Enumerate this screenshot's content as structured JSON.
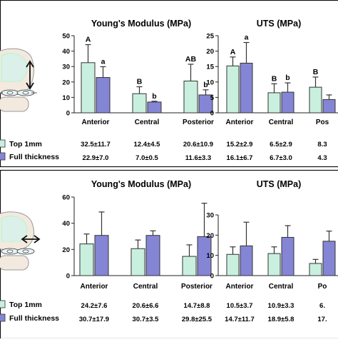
{
  "legend": {
    "top_label": "Top 1mm",
    "full_label": "Full thickness",
    "top_color": "#c9f0df",
    "full_color": "#8585d6"
  },
  "chart_data": [
    {
      "type": "bar",
      "title": "Young's Modulus (MPa)",
      "categories": [
        "Anterior",
        "Central",
        "Posterior"
      ],
      "ylim": [
        0,
        50
      ],
      "yticks": [
        0,
        10,
        20,
        30,
        40,
        50
      ],
      "series": [
        {
          "name": "Top 1mm",
          "values": [
            32.5,
            12.4,
            20.6
          ],
          "errors": [
            11.7,
            4.5,
            10.9
          ],
          "letters": [
            "A",
            "B",
            "AB"
          ]
        },
        {
          "name": "Full thickness",
          "values": [
            22.9,
            7.0,
            11.6
          ],
          "errors": [
            7.0,
            0.5,
            3.3
          ],
          "letters": [
            "a",
            "b",
            "b"
          ]
        }
      ],
      "table": {
        "top": [
          "32.5±11.7",
          "12.4±4.5",
          "20.6±10.9"
        ],
        "full": [
          "22.9±7.0",
          "7.0±0.5",
          "11.6±3.3"
        ]
      }
    },
    {
      "type": "bar",
      "title": "UTS (MPa)",
      "categories": [
        "Anterior",
        "Central",
        "Pos"
      ],
      "ylim": [
        0,
        25
      ],
      "yticks": [
        0,
        5,
        10,
        15,
        20,
        25
      ],
      "series": [
        {
          "name": "Top 1mm",
          "values": [
            15.2,
            6.5,
            8.3
          ],
          "errors": [
            2.9,
            2.9,
            3.3
          ],
          "letters": [
            "A",
            "B",
            "B"
          ]
        },
        {
          "name": "Full thickness",
          "values": [
            16.1,
            6.7,
            4.3
          ],
          "errors": [
            6.7,
            3.0,
            1.5
          ],
          "letters": [
            "a",
            "b",
            ""
          ]
        }
      ],
      "table": {
        "top": [
          "15.2±2.9",
          "6.5±2.9",
          "8.3"
        ],
        "full": [
          "16.1±6.7",
          "6.7±3.0",
          "4.3"
        ]
      }
    },
    {
      "type": "bar",
      "title": "Young's Modulus (MPa)",
      "categories": [
        "Anterior",
        "Central",
        "Posterior"
      ],
      "ylim": [
        0,
        60
      ],
      "yticks": [
        0,
        20,
        40,
        60
      ],
      "series": [
        {
          "name": "Top 1mm",
          "values": [
            24.2,
            20.6,
            14.7
          ],
          "errors": [
            7.6,
            6.6,
            8.8
          ]
        },
        {
          "name": "Full thickness",
          "values": [
            30.7,
            30.7,
            29.8
          ],
          "errors": [
            17.9,
            3.5,
            25.5
          ]
        }
      ],
      "table": {
        "top": [
          "24.2±7.6",
          "20.6±6.6",
          "14.7±8.8"
        ],
        "full": [
          "30.7±17.9",
          "30.7±3.5",
          "29.8±25.5"
        ]
      }
    },
    {
      "type": "bar",
      "title": "UTS (MPa)",
      "categories": [
        "Anterior",
        "Central",
        "Po"
      ],
      "ylim": [
        0,
        30
      ],
      "yticks": [
        0,
        10,
        20,
        30
      ],
      "series": [
        {
          "name": "Top 1mm",
          "values": [
            10.5,
            10.9,
            6.0
          ],
          "errors": [
            3.7,
            3.3,
            2.0
          ]
        },
        {
          "name": "Full thickness",
          "values": [
            14.7,
            18.9,
            17.0
          ],
          "errors": [
            11.7,
            5.8,
            5.0
          ]
        }
      ],
      "table": {
        "top": [
          "10.5±3.7",
          "10.9±3.3",
          "6."
        ],
        "full": [
          "14.7±11.7",
          "18.9±5.8",
          "17."
        ]
      }
    }
  ]
}
